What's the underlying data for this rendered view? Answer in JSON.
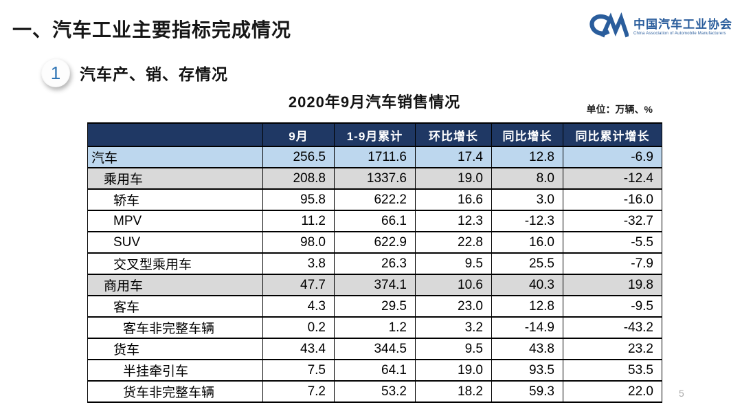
{
  "slide": {
    "title": "一、汽车工业主要指标完成情况",
    "page_number": "5"
  },
  "logo": {
    "monogram": "CM",
    "name_cn": "中国汽车工业协会",
    "name_en": "China Association of Automobile Manufacturers",
    "brand_color": "#2a5d9c"
  },
  "section": {
    "number": "1",
    "heading": "汽车产、销、存情况"
  },
  "table": {
    "title": "2020年9月汽车销售情况",
    "unit_note": "单位：万辆、%",
    "columns": [
      "",
      "9月",
      "1-9月累计",
      "环比增长",
      "同比增长",
      "同比累计增长"
    ],
    "rows": [
      {
        "label": "汽车",
        "indent": 0,
        "style": "blue",
        "values": [
          "256.5",
          "1711.6",
          "17.4",
          "12.8",
          "-6.9"
        ]
      },
      {
        "label": "乘用车",
        "indent": 1,
        "style": "gray",
        "values": [
          "208.8",
          "1337.6",
          "19.0",
          "8.0",
          "-12.4"
        ]
      },
      {
        "label": "轿车",
        "indent": 2,
        "style": "white",
        "values": [
          "95.8",
          "622.2",
          "16.6",
          "3.0",
          "-16.0"
        ]
      },
      {
        "label": "MPV",
        "indent": 2,
        "style": "white",
        "values": [
          "11.2",
          "66.1",
          "12.3",
          "-12.3",
          "-32.7"
        ]
      },
      {
        "label": "SUV",
        "indent": 2,
        "style": "white",
        "values": [
          "98.0",
          "622.9",
          "22.8",
          "16.0",
          "-5.5"
        ]
      },
      {
        "label": "交叉型乘用车",
        "indent": 2,
        "style": "white",
        "values": [
          "3.8",
          "26.3",
          "9.5",
          "25.5",
          "-7.9"
        ]
      },
      {
        "label": "商用车",
        "indent": 1,
        "style": "gray",
        "values": [
          "47.7",
          "374.1",
          "10.6",
          "40.3",
          "19.8"
        ]
      },
      {
        "label": "客车",
        "indent": 2,
        "style": "white",
        "values": [
          "4.3",
          "29.5",
          "23.0",
          "12.8",
          "-9.5"
        ]
      },
      {
        "label": "客车非完整车辆",
        "indent": 3,
        "style": "white",
        "values": [
          "0.2",
          "1.2",
          "3.2",
          "-14.9",
          "-43.2"
        ]
      },
      {
        "label": "货车",
        "indent": 2,
        "style": "white",
        "values": [
          "43.4",
          "344.5",
          "9.5",
          "43.8",
          "23.2"
        ]
      },
      {
        "label": "半挂牵引车",
        "indent": 3,
        "style": "white",
        "values": [
          "7.5",
          "64.1",
          "19.0",
          "93.5",
          "53.5"
        ]
      },
      {
        "label": "货车非完整车辆",
        "indent": 3,
        "style": "white",
        "values": [
          "7.2",
          "53.2",
          "18.2",
          "59.3",
          "22.0"
        ]
      }
    ],
    "colors": {
      "header_bg": "#1F3864",
      "header_text": "#FFFFFF",
      "row_blue": "#BDD7EE",
      "row_gray": "#D9D9D9",
      "accent_blue": "#2E74B5"
    }
  }
}
